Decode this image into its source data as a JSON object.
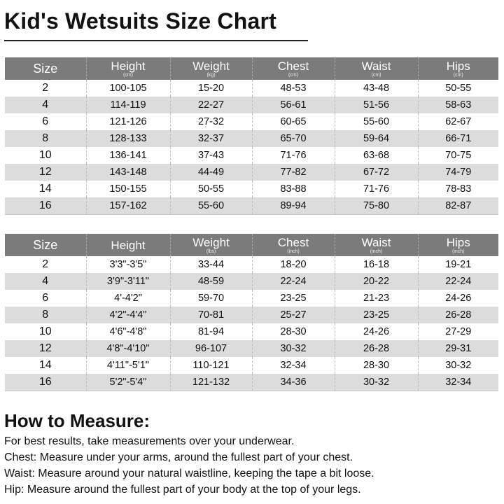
{
  "title": "Kid's Wetsuits Size Chart",
  "metric_table": {
    "headers": [
      {
        "label": "Size",
        "unit": ""
      },
      {
        "label": "Height",
        "unit": "(cm)"
      },
      {
        "label": "Weight",
        "unit": "(kg)"
      },
      {
        "label": "Chest",
        "unit": "(cm)"
      },
      {
        "label": "Waist",
        "unit": "(cm)"
      },
      {
        "label": "Hips",
        "unit": "(cm)"
      }
    ],
    "rows": [
      [
        "2",
        "100-105",
        "15-20",
        "48-53",
        "43-48",
        "50-55"
      ],
      [
        "4",
        "114-119",
        "22-27",
        "56-61",
        "51-56",
        "58-63"
      ],
      [
        "6",
        "121-126",
        "27-32",
        "60-65",
        "55-60",
        "62-67"
      ],
      [
        "8",
        "128-133",
        "32-37",
        "65-70",
        "59-64",
        "66-71"
      ],
      [
        "10",
        "136-141",
        "37-43",
        "71-76",
        "63-68",
        "70-75"
      ],
      [
        "12",
        "143-148",
        "44-49",
        "77-82",
        "67-72",
        "74-79"
      ],
      [
        "14",
        "150-155",
        "50-55",
        "83-88",
        "71-76",
        "78-83"
      ],
      [
        "16",
        "157-162",
        "55-60",
        "89-94",
        "75-80",
        "82-87"
      ]
    ]
  },
  "imperial_table": {
    "headers": [
      {
        "label": "Size",
        "unit": ""
      },
      {
        "label": "Height",
        "unit": ""
      },
      {
        "label": "Weight",
        "unit": "(lbs)"
      },
      {
        "label": "Chest",
        "unit": "(inch)"
      },
      {
        "label": "Waist",
        "unit": "(inch)"
      },
      {
        "label": "Hips",
        "unit": "(inch)"
      }
    ],
    "rows": [
      [
        "2",
        "3'3\"-3'5\"",
        "33-44",
        "18-20",
        "16-18",
        "19-21"
      ],
      [
        "4",
        "3'9\"-3'11\"",
        "48-59",
        "22-24",
        "20-22",
        "22-24"
      ],
      [
        "6",
        "4'-4'2\"",
        "59-70",
        "23-25",
        "21-23",
        "24-26"
      ],
      [
        "8",
        "4'2\"-4'4\"",
        "70-81",
        "25-27",
        "23-25",
        "26-28"
      ],
      [
        "10",
        "4'6\"-4'8\"",
        "81-94",
        "28-30",
        "24-26",
        "27-29"
      ],
      [
        "12",
        "4'8\"-4'10\"",
        "96-107",
        "30-32",
        "26-28",
        "29-31"
      ],
      [
        "14",
        "4'11\"-5'1\"",
        "110-121",
        "32-34",
        "28-30",
        "30-32"
      ],
      [
        "16",
        "5'2\"-5'4\"",
        "121-132",
        "34-36",
        "30-32",
        "32-34"
      ]
    ]
  },
  "how_to_measure": {
    "title": "How to Measure:",
    "lines": [
      "For best results, take measurements over your underwear.",
      "Chest: Measure under your arms, around the fullest part of your chest.",
      "Waist: Measure around your natural waistline, keeping the tape a bit loose.",
      "Hip: Measure around the fullest part of your body at the top of your legs."
    ]
  }
}
